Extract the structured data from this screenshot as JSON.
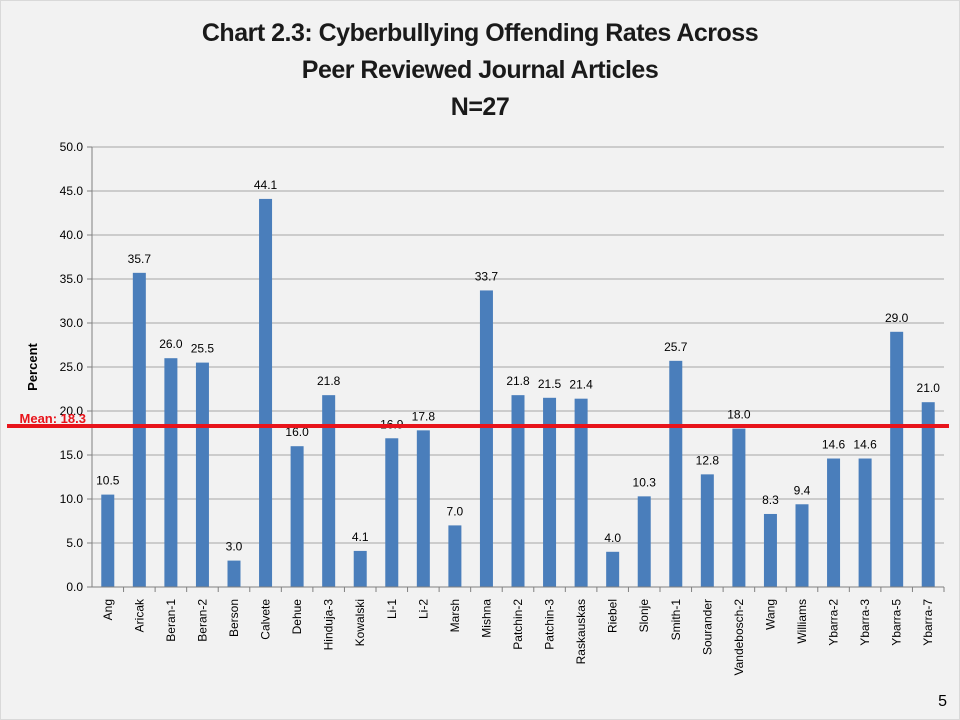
{
  "slide": {
    "title_lines": [
      "Chart 2.3: Cyberbullying Offending Rates Across",
      "Peer Reviewed Journal Articles",
      "N=27"
    ],
    "page_number": "5"
  },
  "chart_data": {
    "type": "bar",
    "title": "Chart 2.3: Cyberbullying Offending Rates Across Peer Reviewed Journal Articles N=27",
    "ylabel": "Percent",
    "xlabel": "",
    "ylim": [
      0,
      50
    ],
    "ytick_labels": [
      "0.0",
      "5.0",
      "10.0",
      "15.0",
      "20.0",
      "25.0",
      "30.0",
      "35.0",
      "40.0",
      "45.0",
      "50.0"
    ],
    "categories": [
      "Ang",
      "Aricak",
      "Beran-1",
      "Beran-2",
      "Berson",
      "Calvete",
      "Dehue",
      "Hinduja-3",
      "Kowalski",
      "Li-1",
      "Li-2",
      "Marsh",
      "Mishna",
      "Patchin-2",
      "Patchin-3",
      "Raskauskas",
      "Riebel",
      "Slonje",
      "Smith-1",
      "Sourander",
      "Vandebosch-2",
      "Wang",
      "Williams",
      "Ybarra-2",
      "Ybarra-3",
      "Ybarra-5",
      "Ybarra-7"
    ],
    "values": [
      10.5,
      35.7,
      26.0,
      25.5,
      3.0,
      44.1,
      16.0,
      21.8,
      4.1,
      16.9,
      17.8,
      7.0,
      33.7,
      21.8,
      21.5,
      21.4,
      4.0,
      10.3,
      25.7,
      12.8,
      18.0,
      8.3,
      9.4,
      14.6,
      14.6,
      29.0,
      21.0
    ],
    "value_labels": [
      "10.5",
      "35.7",
      "26.0",
      "25.5",
      "3.0",
      "44.1",
      "16.0",
      "21.8",
      "4.1",
      "16.9",
      "17.8",
      "7.0",
      "33.7",
      "21.8",
      "21.5",
      "21.4",
      "4.0",
      "10.3",
      "25.7",
      "12.8",
      "18.0",
      "8.3",
      "9.4",
      "14.6",
      "14.6",
      "29.0",
      "21.0"
    ],
    "mean": {
      "label": "Mean: 18.3",
      "value": 18.3
    },
    "colors": {
      "bar": "#4a7ebb",
      "mean_line": "#e8141b",
      "mean_text": "#e8141b",
      "grid": "#a6a6a6",
      "axis": "#808080"
    },
    "grid": true,
    "legend": "none"
  }
}
